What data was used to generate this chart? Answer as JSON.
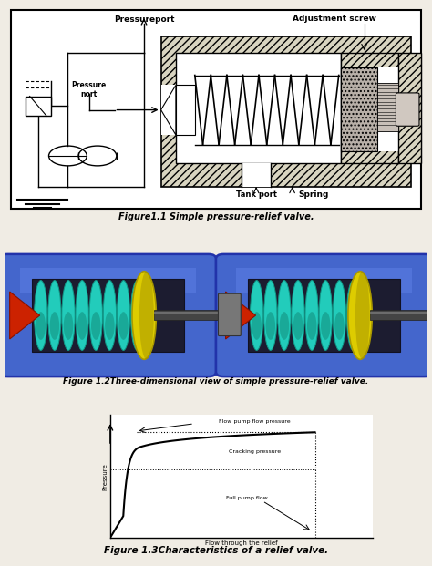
{
  "fig_width": 4.74,
  "fig_height": 6.21,
  "dpi": 100,
  "bg_color": "#f0ece4",
  "figure1_caption": "Figure1.1 Simple pressure-relief valve.",
  "figure2_caption": "Figure 1.2Three-dimensional view of simple pressure-relief valve.",
  "figure3_caption": "Figure 1.3Characteristics of a relief valve.",
  "labels": {
    "pressureport": "Pressureport",
    "pressure_port": "Pressure\nnort",
    "tank_port": "Tank port",
    "spring": "Spring",
    "adjustment_screw": "Adjustment screw"
  },
  "graph_labels": {
    "flow_pump_pressure": "Flow pump flow pressure",
    "cracking_pressure": "Cracking pressure",
    "full_pump_flow": "Full pump flow",
    "x_axis": "Flow through the relief",
    "y_axis": "Pressure"
  },
  "colors": {
    "hatch_body": "#d8d4c8",
    "cavity_white": "#ffffff",
    "grey_block": "#c0b8b0",
    "spring_teal": "#20c8b0",
    "yellow_disc": "#e8d000",
    "red_cone": "#cc2200",
    "blue_body": "#4466cc",
    "blue_dark": "#2244aa",
    "rod_dark": "#555555",
    "bg": "#f0ece4"
  }
}
